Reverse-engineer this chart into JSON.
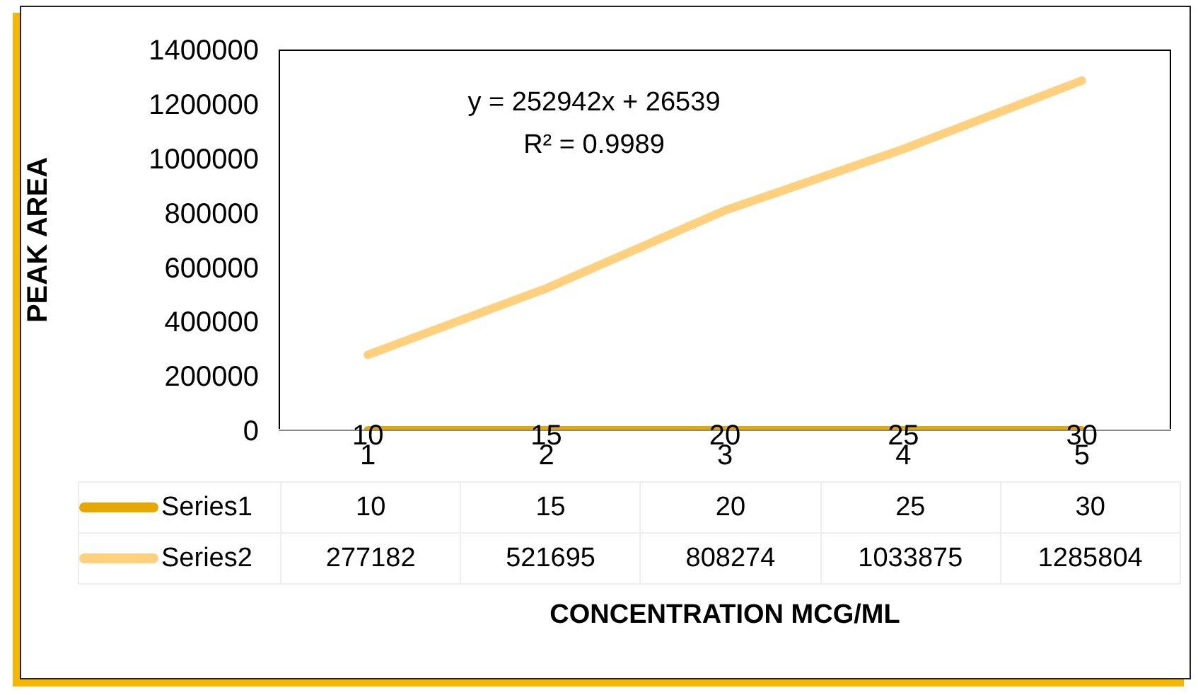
{
  "chart_data": {
    "type": "line",
    "categories": [
      "1",
      "2",
      "3",
      "4",
      "5"
    ],
    "series": [
      {
        "name": "Series1",
        "color": "#e5a800",
        "values": [
          10,
          15,
          20,
          25,
          30
        ]
      },
      {
        "name": "Series2",
        "color": "#ffd17f",
        "values": [
          277182,
          521695,
          808274,
          1033875,
          1285804
        ]
      }
    ],
    "ylim": [
      0,
      1400000
    ],
    "yticks": [
      0,
      200000,
      400000,
      600000,
      800000,
      1000000,
      1200000,
      1400000
    ],
    "ylabel": "PEAK AREA",
    "xlabel": "CONCENTRATION MCG/ML",
    "annotations": [
      "y = 252942x + 26539",
      "R² = 0.9989",
      {
        "text": "10",
        "x": "1"
      },
      {
        "text": "15",
        "x": "2"
      },
      {
        "text": "20",
        "x": "3"
      },
      {
        "text": "25",
        "x": "4"
      },
      {
        "text": "30",
        "x": "5"
      }
    ],
    "data_labels": true,
    "legend": "bottom",
    "grid": false
  }
}
